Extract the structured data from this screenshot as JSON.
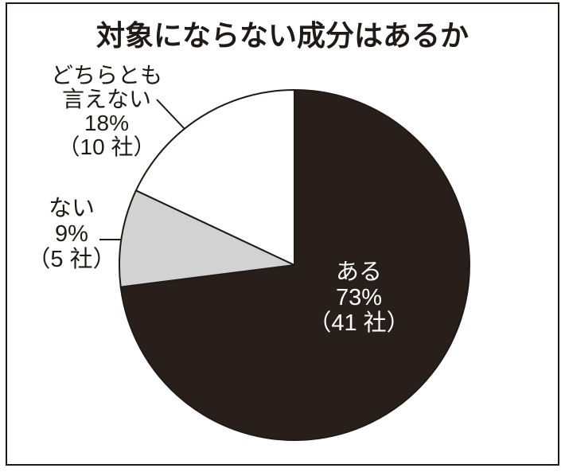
{
  "chart_data": {
    "type": "pie",
    "title": "対象にならない成分はあるか",
    "start_angle": "12-oclock",
    "direction": "clockwise",
    "unit": "社",
    "legend_position": "none",
    "slices": [
      {
        "label": "ある",
        "percent": 73,
        "percent_label": "73%",
        "companies": 41,
        "count_label": "（41 社）",
        "color": "#281f1b",
        "label_color": "#ffffff",
        "label_placement": "inside"
      },
      {
        "label": "ない",
        "percent": 9,
        "percent_label": "9%",
        "companies": 5,
        "count_label": "（5 社）",
        "color": "#d2d2d2",
        "label_color": "#1f1a18",
        "label_placement": "outside-left"
      },
      {
        "label": "どちらとも言えない",
        "label_lines": [
          "どちらとも",
          "言えない"
        ],
        "percent": 18,
        "percent_label": "18%",
        "companies": 10,
        "count_label": "（10 社）",
        "color": "#ffffff",
        "label_color": "#1f1a18",
        "label_placement": "outside-top-left"
      }
    ]
  },
  "colors": {
    "ink": "#1f1a18",
    "background": "#ffffff",
    "slice_yes": "#281f1b",
    "slice_no": "#d2d2d2",
    "slice_undecided": "#ffffff"
  }
}
